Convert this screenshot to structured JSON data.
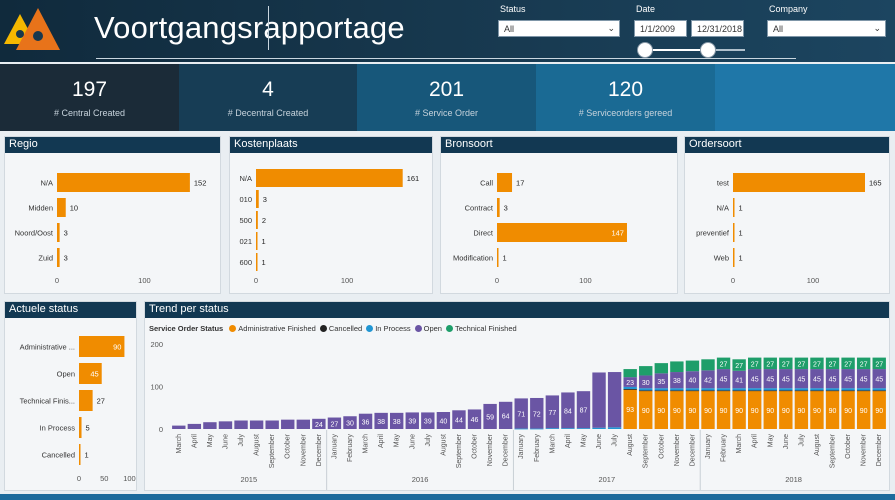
{
  "header": {
    "title": "Voortgangsrapportage",
    "status_label": "Status",
    "status_value": "All",
    "date_label": "Date",
    "date_from": "1/1/2009",
    "date_to": "12/31/2018",
    "date_range_position": [
      0.0,
      0.63
    ],
    "company_label": "Company",
    "company_value": "All",
    "logo_colors": [
      "#f5b800",
      "#e8731a"
    ]
  },
  "kpis": [
    {
      "value": "197",
      "label": "# Central Created",
      "bg": "#1b2b38"
    },
    {
      "value": "4",
      "label": "# Decentral Created",
      "bg": "#173d55"
    },
    {
      "value": "201",
      "label": "# Service Order",
      "bg": "#17577a"
    },
    {
      "value": "120",
      "label": "# Serviceorders gereed",
      "bg": "#1a6a94"
    }
  ],
  "colors": {
    "bar": "#f08c00",
    "admin_finished": "#f08c00",
    "cancelled": "#222222",
    "in_process": "#2196d3",
    "open": "#6a55a4",
    "technical_finished": "#1e9e6a",
    "panel_header": "#123852"
  },
  "panels": {
    "regio": {
      "title": "Regio"
    },
    "kostenplaats": {
      "title": "Kostenplaats"
    },
    "bronsoort": {
      "title": "Bronsoort"
    },
    "ordersoort": {
      "title": "Ordersoort"
    },
    "actuele_status": {
      "title": "Actuele status"
    },
    "trend": {
      "title": "Trend per status",
      "legend_title": "Service Order Status"
    }
  },
  "chart_data": [
    {
      "type": "bar",
      "orientation": "horizontal",
      "id": "regio",
      "title": "Regio",
      "categories": [
        "N/A",
        "Midden",
        "Noord/Oost",
        "Zuid"
      ],
      "values": [
        152,
        10,
        3,
        3
      ],
      "xlim": [
        0,
        175
      ],
      "xticks": [
        0,
        100
      ]
    },
    {
      "type": "bar",
      "orientation": "horizontal",
      "id": "kostenplaats",
      "title": "Kostenplaats",
      "categories": [
        "N/A",
        "010",
        "500",
        "021",
        "600"
      ],
      "values": [
        161,
        3,
        2,
        1,
        1
      ],
      "xlim": [
        0,
        180
      ],
      "xticks": [
        0,
        100
      ]
    },
    {
      "type": "bar",
      "orientation": "horizontal",
      "id": "bronsoort",
      "title": "Bronsoort",
      "categories": [
        "Call",
        "Contract",
        "Direct",
        "Modification"
      ],
      "values": [
        17,
        3,
        147,
        1
      ],
      "xlim": [
        0,
        190
      ],
      "xticks": [
        0,
        100
      ]
    },
    {
      "type": "bar",
      "orientation": "horizontal",
      "id": "ordersoort",
      "title": "Ordersoort",
      "categories": [
        "test",
        "N/A",
        "preventief",
        "Web"
      ],
      "values": [
        165,
        1,
        1,
        1
      ],
      "xlim": [
        0,
        185
      ],
      "xticks": [
        0,
        100
      ]
    },
    {
      "type": "bar",
      "orientation": "horizontal",
      "id": "actuele_status",
      "title": "Actuele status",
      "categories": [
        "Administrative ...",
        "Open",
        "Technical Finis...",
        "In Process",
        "Cancelled"
      ],
      "values": [
        90,
        45,
        27,
        5,
        1
      ],
      "xlim": [
        0,
        105
      ],
      "xticks": [
        0,
        50,
        100
      ]
    },
    {
      "type": "bar",
      "stacked": true,
      "id": "trend",
      "title": "Trend per status",
      "legend_title": "Service Order Status",
      "ylim": [
        0,
        200
      ],
      "yticks": [
        0,
        100,
        200
      ],
      "categories": [
        "March",
        "April",
        "May",
        "June",
        "July",
        "August",
        "September",
        "October",
        "November",
        "December",
        "January",
        "February",
        "March",
        "April",
        "May",
        "June",
        "July",
        "August",
        "September",
        "October",
        "November",
        "December",
        "January",
        "February",
        "March",
        "April",
        "May",
        "June",
        "July",
        "August",
        "September",
        "October",
        "November",
        "December",
        "January",
        "February",
        "March",
        "April",
        "May",
        "June",
        "July",
        "August",
        "September",
        "October",
        "November",
        "December"
      ],
      "years": [
        {
          "label": "2015",
          "start": 0,
          "end": 9
        },
        {
          "label": "2016",
          "start": 10,
          "end": 21
        },
        {
          "label": "2017",
          "start": 22,
          "end": 33
        },
        {
          "label": "2018",
          "start": 34,
          "end": 45
        }
      ],
      "series": [
        {
          "name": "Administrative Finished",
          "color": "#f08c00",
          "values": [
            0,
            0,
            0,
            0,
            0,
            0,
            0,
            0,
            0,
            0,
            0,
            0,
            0,
            0,
            0,
            0,
            0,
            0,
            0,
            0,
            0,
            0,
            0,
            0,
            0,
            0,
            0,
            0,
            0,
            93,
            90,
            90,
            90,
            90,
            90,
            90,
            90,
            90,
            90,
            90,
            90,
            90,
            90,
            90,
            90,
            90
          ]
        },
        {
          "name": "Cancelled",
          "color": "#222222",
          "values": [
            0,
            0,
            0,
            0,
            0,
            0,
            0,
            0,
            0,
            0,
            0,
            0,
            0,
            0,
            0,
            0,
            0,
            0,
            0,
            0,
            0,
            0,
            0,
            0,
            0,
            0,
            0,
            0,
            0,
            1,
            1,
            1,
            1,
            1,
            1,
            1,
            1,
            1,
            1,
            1,
            1,
            1,
            1,
            1,
            1,
            1
          ]
        },
        {
          "name": "In Process",
          "color": "#2196d3",
          "values": [
            0,
            0,
            0,
            0,
            0,
            0,
            0,
            0,
            0,
            0,
            0,
            0,
            0,
            0,
            0,
            0,
            0,
            0,
            0,
            0,
            0,
            0,
            1,
            1,
            2,
            2,
            2,
            3,
            4,
            5,
            5,
            5,
            5,
            5,
            5,
            5,
            5,
            5,
            5,
            5,
            5,
            5,
            5,
            5,
            5,
            5
          ]
        },
        {
          "name": "Open",
          "color": "#6a55a4",
          "values": [
            8,
            12,
            16,
            18,
            20,
            20,
            20,
            22,
            22,
            24,
            27,
            30,
            36,
            38,
            38,
            39,
            39,
            40,
            44,
            46,
            59,
            64,
            71,
            72,
            77,
            84,
            87,
            130,
            130,
            23,
            30,
            35,
            38,
            40,
            42,
            45,
            41,
            45,
            45,
            45,
            45,
            45,
            45,
            45,
            45,
            45
          ]
        },
        {
          "name": "Technical Finished",
          "color": "#1e9e6a",
          "values": [
            0,
            0,
            0,
            0,
            0,
            0,
            0,
            0,
            0,
            0,
            0,
            0,
            0,
            0,
            0,
            0,
            0,
            0,
            0,
            0,
            0,
            0,
            0,
            0,
            0,
            0,
            0,
            0,
            0,
            19,
            22,
            24,
            25,
            25,
            26,
            27,
            27,
            27,
            27,
            27,
            27,
            27,
            27,
            27,
            27,
            27
          ]
        }
      ],
      "labeled_points": {
        "open_labels": [
          "",
          "",
          "",
          "",
          "",
          "",
          "",
          "",
          "",
          "24",
          "27",
          "30",
          "36",
          "38",
          "38",
          "39",
          "39",
          "40",
          "44",
          "46",
          "59",
          "64",
          "71",
          "72",
          "77",
          "84",
          "87",
          "",
          "",
          "23",
          "30",
          "35",
          "38",
          "40",
          "42",
          "45",
          "41",
          "45",
          "45",
          "45",
          "45",
          "45",
          "45",
          "45",
          "45",
          "45"
        ],
        "admin_labels": [
          "",
          "",
          "",
          "",
          "",
          "",
          "",
          "",
          "",
          "",
          "",
          "",
          "",
          "",
          "",
          "",
          "",
          "",
          "",
          "",
          "",
          "",
          "",
          "",
          "",
          "",
          "",
          "",
          "",
          "93",
          "90",
          "90",
          "90",
          "90",
          "90",
          "90",
          "90",
          "90",
          "90",
          "90",
          "90",
          "90",
          "90",
          "90",
          "90",
          "90"
        ],
        "tech_labels": [
          "",
          "",
          "",
          "",
          "",
          "",
          "",
          "",
          "",
          "",
          "",
          "",
          "",
          "",
          "",
          "",
          "",
          "",
          "",
          "",
          "",
          "",
          "",
          "",
          "",
          "",
          "",
          "",
          "",
          "",
          "",
          "",
          "",
          "",
          "",
          "27",
          "27",
          "27",
          "27",
          "27",
          "27",
          "27",
          "27",
          "27",
          "27",
          "27"
        ]
      }
    }
  ]
}
